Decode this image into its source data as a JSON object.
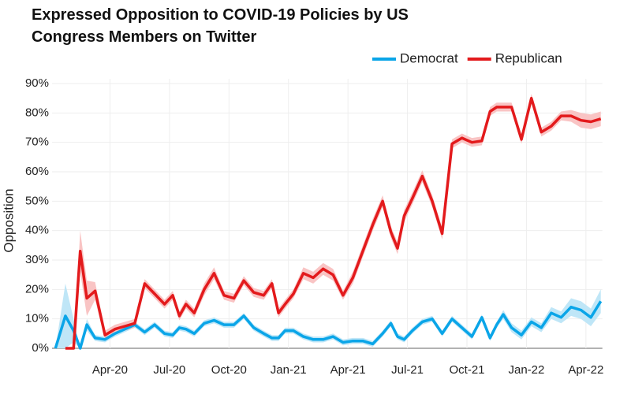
{
  "chart_data": {
    "type": "line",
    "title": "Expressed Opposition to COVID-19 Policies by US Congress Members on Twitter",
    "y_label": "Opposition",
    "legend": "top-right",
    "grid": true,
    "x": [
      "2020-01",
      "2020-01",
      "2020-02",
      "2020-02",
      "2020-02",
      "2020-03",
      "2020-03",
      "2020-04",
      "2020-04",
      "2020-05",
      "2020-05",
      "2020-06",
      "2020-06",
      "2020-07",
      "2020-07",
      "2020-07",
      "2020-08",
      "2020-08",
      "2020-09",
      "2020-09",
      "2020-10",
      "2020-10",
      "2020-11",
      "2020-11",
      "2020-12",
      "2020-12",
      "2020-12",
      "2021-01",
      "2021-01",
      "2021-02",
      "2021-02",
      "2021-03",
      "2021-03",
      "2021-04",
      "2021-04",
      "2021-05",
      "2021-05",
      "2021-06",
      "2021-06",
      "2021-06",
      "2021-07",
      "2021-07",
      "2021-08",
      "2021-08",
      "2021-09",
      "2021-09",
      "2021-10",
      "2021-10",
      "2021-11",
      "2021-11",
      "2021-11",
      "2021-12",
      "2021-12",
      "2022-01",
      "2022-01",
      "2022-02",
      "2022-02",
      "2022-03",
      "2022-03",
      "2022-04",
      "2022-04"
    ],
    "xlim": [
      "2020-01",
      "2022-05"
    ],
    "xticks": [
      {
        "value": "2020-04",
        "label": "Apr-20"
      },
      {
        "value": "2020-07",
        "label": "Jul-20"
      },
      {
        "value": "2020-10",
        "label": "Oct-20"
      },
      {
        "value": "2021-01",
        "label": "Jan-21"
      },
      {
        "value": "2021-04",
        "label": "Apr-21"
      },
      {
        "value": "2021-07",
        "label": "Jul-21"
      },
      {
        "value": "2021-10",
        "label": "Oct-21"
      },
      {
        "value": "2022-01",
        "label": "Jan-22"
      },
      {
        "value": "2022-04",
        "label": "Apr-22"
      }
    ],
    "ylim": [
      0,
      90
    ],
    "yticks": [
      {
        "value": 0,
        "label": "0%"
      },
      {
        "value": 10,
        "label": "10%"
      },
      {
        "value": 20,
        "label": "20%"
      },
      {
        "value": 30,
        "label": "30%"
      },
      {
        "value": 40,
        "label": "40%"
      },
      {
        "value": 50,
        "label": "50%"
      },
      {
        "value": 60,
        "label": "60%"
      },
      {
        "value": 70,
        "label": "70%"
      },
      {
        "value": 80,
        "label": "80%"
      },
      {
        "value": 90,
        "label": "90%"
      }
    ],
    "series": [
      {
        "name": "Democrat",
        "color": "#0aa5e8",
        "band_color": "#bfe6f7",
        "values": [
          0,
          11,
          6,
          0,
          8,
          3.5,
          3,
          5,
          6.5,
          8,
          5.5,
          8,
          5,
          4.5,
          7,
          6.5,
          5,
          8.5,
          9.5,
          8,
          8,
          11,
          7,
          5,
          3.5,
          3.5,
          6,
          6,
          4,
          3,
          3,
          4,
          2,
          2.5,
          2.5,
          1.5,
          5,
          8.5,
          4,
          3,
          6,
          9,
          10,
          5,
          10,
          7,
          4,
          10.5,
          3.5,
          8,
          11.5,
          7,
          4.5,
          9,
          7,
          12,
          10.5,
          14,
          13,
          10.5,
          16
        ],
        "ci": [
          0,
          11,
          4,
          0,
          2,
          1,
          1,
          1,
          1,
          1,
          1,
          1,
          1,
          1,
          1,
          1,
          1,
          1,
          1,
          1,
          1,
          1,
          1,
          1,
          1,
          1,
          1,
          1,
          1,
          1,
          1,
          1,
          1,
          1,
          1,
          1,
          1,
          1,
          1,
          1,
          1,
          1,
          1,
          1,
          1,
          1,
          1,
          1,
          1,
          1,
          1.5,
          1.5,
          1.5,
          1.5,
          1.5,
          2,
          2,
          3,
          3,
          3,
          4
        ]
      },
      {
        "name": "Republican",
        "color": "#e31a1c",
        "band_color": "#f9c4c4",
        "values": [
          null,
          0,
          0,
          33,
          17,
          19.5,
          4.5,
          6.5,
          7.5,
          8.5,
          22,
          18.5,
          15,
          18,
          11,
          15,
          12,
          20,
          25.5,
          18,
          17,
          23,
          19,
          18,
          22,
          12,
          15,
          18.5,
          25.5,
          24,
          27,
          25,
          18,
          24,
          33,
          42,
          50,
          39.5,
          34,
          45,
          51,
          58.5,
          50,
          39,
          69.5,
          71.5,
          70,
          70.5,
          80.5,
          82,
          82,
          82,
          71,
          85,
          73.5,
          75.5,
          79,
          79,
          77.5,
          77,
          78
        ],
        "ci": [
          null,
          0,
          0,
          7,
          6,
          3,
          1.5,
          1.5,
          1.5,
          1.5,
          1.5,
          1.5,
          1.5,
          1.5,
          1.5,
          1.5,
          1.5,
          2,
          2,
          1.5,
          1.5,
          1.5,
          1.5,
          1.5,
          1.5,
          1.5,
          1.5,
          1.5,
          2,
          2,
          2,
          2,
          1.5,
          2,
          2,
          2,
          2,
          2,
          2,
          2,
          2,
          2,
          2,
          2,
          1.5,
          1.5,
          1.5,
          1.5,
          1.5,
          1.5,
          1.5,
          1.5,
          1.5,
          1.5,
          1.5,
          1.5,
          1.5,
          2,
          2.5,
          2.5,
          2.5
        ]
      }
    ]
  }
}
